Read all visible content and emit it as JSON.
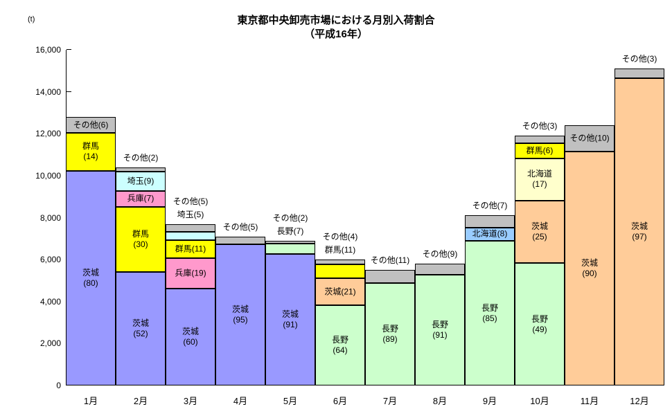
{
  "chart_data": {
    "type": "bar",
    "variant": "stacked-column-monthly",
    "title": {
      "line1": "東京都中央卸売市場における月別入荷割合",
      "line2": "（平成16年）"
    },
    "unit": "(t)",
    "legend_position": "none",
    "grid": "off",
    "y_axis": {
      "min": 0,
      "max": 16000,
      "step": 2000,
      "tick_labels": [
        "0",
        "2,000",
        "4,000",
        "6,000",
        "8,000",
        "10,000",
        "12,000",
        "14,000",
        "16,000"
      ]
    },
    "x_axis": {
      "categories": [
        "1月",
        "2月",
        "3月",
        "4月",
        "5月",
        "6月",
        "7月",
        "8月",
        "9月",
        "10月",
        "11月",
        "12月"
      ]
    },
    "segment_colors": {
      "茨城_winter": "#9999FF",
      "茨城_summer_autumn": "#FFCC99",
      "群馬": "#FFFF00",
      "兵庫": "#FF99CC",
      "埼玉": "#CCFFFF",
      "長野": "#CCFFCC",
      "北海道_9月": "#99CCFF",
      "北海道_10月": "#FFFFCC",
      "その他": "#C0C0C0"
    },
    "months": [
      {
        "label": "1月",
        "total_t": 12800,
        "segments": [
          {
            "name": "茨城",
            "pct": 80,
            "color": "#9999FF",
            "label_lines": [
              "茨城",
              "(80)"
            ]
          },
          {
            "name": "群馬",
            "pct": 14,
            "color": "#FFFF00",
            "label_lines": [
              "群馬",
              "(14)"
            ]
          },
          {
            "name": "その他",
            "pct": 6,
            "color": "#C0C0C0",
            "label_lines": [
              "その他(6)"
            ]
          }
        ],
        "outside_labels": []
      },
      {
        "label": "2月",
        "total_t": 10400,
        "segments": [
          {
            "name": "茨城",
            "pct": 52,
            "color": "#9999FF",
            "label_lines": [
              "茨城",
              "(52)"
            ]
          },
          {
            "name": "群馬",
            "pct": 30,
            "color": "#FFFF00",
            "label_lines": [
              "群馬",
              "(30)"
            ]
          },
          {
            "name": "兵庫",
            "pct": 7,
            "color": "#FF99CC",
            "label_lines": [
              "兵庫(7)"
            ]
          },
          {
            "name": "埼玉",
            "pct": 9,
            "color": "#CCFFFF",
            "label_lines": [
              "埼玉(9)"
            ]
          },
          {
            "name": "その他",
            "pct": 2,
            "color": "#C0C0C0",
            "label_lines": []
          }
        ],
        "outside_labels": [
          "その他(2)"
        ]
      },
      {
        "label": "3月",
        "total_t": 7700,
        "segments": [
          {
            "name": "茨城",
            "pct": 60,
            "color": "#9999FF",
            "label_lines": [
              "茨城",
              "(60)"
            ]
          },
          {
            "name": "兵庫",
            "pct": 19,
            "color": "#FF99CC",
            "label_lines": [
              "兵庫(19)"
            ]
          },
          {
            "name": "群馬",
            "pct": 11,
            "color": "#FFFF00",
            "label_lines": [
              "群馬(11)"
            ]
          },
          {
            "name": "埼玉",
            "pct": 5,
            "color": "#CCFFFF",
            "label_lines": []
          },
          {
            "name": "その他",
            "pct": 5,
            "color": "#C0C0C0",
            "label_lines": []
          }
        ],
        "outside_labels": [
          "その他(5)",
          "埼玉(5)"
        ]
      },
      {
        "label": "4月",
        "total_t": 7100,
        "segments": [
          {
            "name": "茨城",
            "pct": 95,
            "color": "#9999FF",
            "label_lines": [
              "茨城",
              "(95)"
            ]
          },
          {
            "name": "その他",
            "pct": 5,
            "color": "#C0C0C0",
            "label_lines": []
          }
        ],
        "outside_labels": [
          "その他(5)"
        ]
      },
      {
        "label": "5月",
        "total_t": 6900,
        "segments": [
          {
            "name": "茨城",
            "pct": 91,
            "color": "#9999FF",
            "label_lines": [
              "茨城",
              "(91)"
            ]
          },
          {
            "name": "長野",
            "pct": 7,
            "color": "#CCFFCC",
            "label_lines": []
          },
          {
            "name": "その他",
            "pct": 2,
            "color": "#C0C0C0",
            "label_lines": []
          }
        ],
        "outside_labels": [
          "その他(2)",
          "長野(7)"
        ]
      },
      {
        "label": "6月",
        "total_t": 6000,
        "segments": [
          {
            "name": "長野",
            "pct": 64,
            "color": "#CCFFCC",
            "label_lines": [
              "長野",
              "(64)"
            ]
          },
          {
            "name": "茨城",
            "pct": 21,
            "color": "#FFCC99",
            "label_lines": [
              "茨城(21)"
            ]
          },
          {
            "name": "群馬",
            "pct": 11,
            "color": "#FFFF00",
            "label_lines": []
          },
          {
            "name": "その他",
            "pct": 4,
            "color": "#C0C0C0",
            "label_lines": []
          }
        ],
        "outside_labels": [
          "その他(4)",
          "群馬(11)"
        ]
      },
      {
        "label": "7月",
        "total_t": 5500,
        "segments": [
          {
            "name": "長野",
            "pct": 89,
            "color": "#CCFFCC",
            "label_lines": [
              "長野",
              "(89)"
            ]
          },
          {
            "name": "その他",
            "pct": 11,
            "color": "#C0C0C0",
            "label_lines": []
          }
        ],
        "outside_labels": [
          "その他(11)"
        ]
      },
      {
        "label": "8月",
        "total_t": 5800,
        "segments": [
          {
            "name": "長野",
            "pct": 91,
            "color": "#CCFFCC",
            "label_lines": [
              "長野",
              "(91)"
            ]
          },
          {
            "name": "その他",
            "pct": 9,
            "color": "#C0C0C0",
            "label_lines": []
          }
        ],
        "outside_labels": [
          "その他(9)"
        ]
      },
      {
        "label": "9月",
        "total_t": 8100,
        "segments": [
          {
            "name": "長野",
            "pct": 85,
            "color": "#CCFFCC",
            "label_lines": [
              "長野",
              "(85)"
            ]
          },
          {
            "name": "北海道",
            "pct": 8,
            "color": "#99CCFF",
            "label_lines": [
              "北海道(8)"
            ]
          },
          {
            "name": "その他",
            "pct": 7,
            "color": "#C0C0C0",
            "label_lines": []
          }
        ],
        "outside_labels": [
          "その他(7)"
        ]
      },
      {
        "label": "10月",
        "total_t": 11900,
        "segments": [
          {
            "name": "長野",
            "pct": 49,
            "color": "#CCFFCC",
            "label_lines": [
              "長野",
              "(49)"
            ]
          },
          {
            "name": "茨城",
            "pct": 25,
            "color": "#FFCC99",
            "label_lines": [
              "茨城",
              "(25)"
            ]
          },
          {
            "name": "北海道",
            "pct": 17,
            "color": "#FFFFCC",
            "label_lines": [
              "北海道",
              "(17)"
            ]
          },
          {
            "name": "群馬",
            "pct": 6,
            "color": "#FFFF00",
            "label_lines": [
              "群馬(6)"
            ]
          },
          {
            "name": "その他",
            "pct": 3,
            "color": "#C0C0C0",
            "label_lines": []
          }
        ],
        "outside_labels": [
          "その他(3)"
        ]
      },
      {
        "label": "11月",
        "total_t": 12400,
        "segments": [
          {
            "name": "茨城",
            "pct": 90,
            "color": "#FFCC99",
            "label_lines": [
              "茨城",
              "(90)"
            ]
          },
          {
            "name": "その他",
            "pct": 10,
            "color": "#C0C0C0",
            "label_lines": [
              "その他(10)"
            ]
          }
        ],
        "outside_labels": []
      },
      {
        "label": "12月",
        "total_t": 15100,
        "segments": [
          {
            "name": "茨城",
            "pct": 97,
            "color": "#FFCC99",
            "label_lines": [
              "茨城",
              "(97)"
            ]
          },
          {
            "name": "その他",
            "pct": 3,
            "color": "#C0C0C0",
            "label_lines": []
          }
        ],
        "outside_labels": [
          "その他(3)"
        ]
      }
    ]
  }
}
